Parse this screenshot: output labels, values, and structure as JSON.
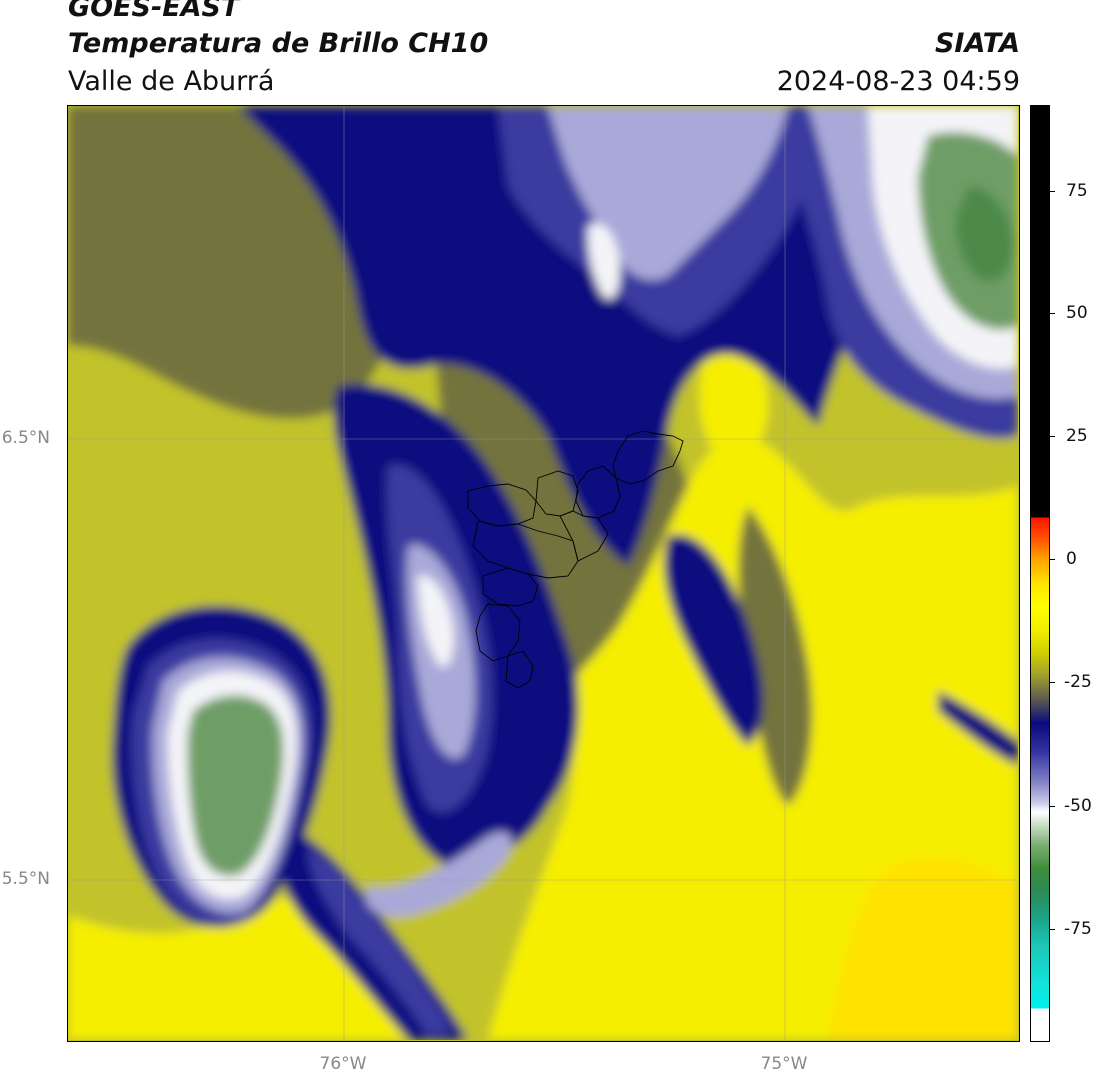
{
  "header": {
    "satellite": "GOES-EAST",
    "product": "Temperatura de Brillo CH10",
    "region": "Valle de Aburrá",
    "agency": "SIATA",
    "datetime": "2024-08-23 04:59"
  },
  "axes": {
    "lat_labels": [
      "6.5°N",
      "5.5°N"
    ],
    "lon_labels": [
      "76°W",
      "75°W"
    ]
  },
  "colorbar": {
    "tick_labels": [
      "75",
      "50",
      "25",
      "0",
      "-25",
      "-50",
      "-75"
    ],
    "colors": [
      "#000000",
      "#ff1000",
      "#ffa400",
      "#ffff00",
      "#d0d000",
      "#5a5a50",
      "#0a0a7e",
      "#7a7ac4",
      "#ffffff",
      "#7cb074",
      "#3e8e3a",
      "#1cc8b8",
      "#00eeee"
    ]
  },
  "map_colors": {
    "yellow": "#f5ee00",
    "olive": "#c2c22a",
    "dark_olive": "#73733d",
    "navy": "#0b0b80",
    "blue": "#3a3aa0",
    "lavender": "#a9a9d9",
    "white": "#f4f4f8",
    "green": "#6e9e66"
  }
}
